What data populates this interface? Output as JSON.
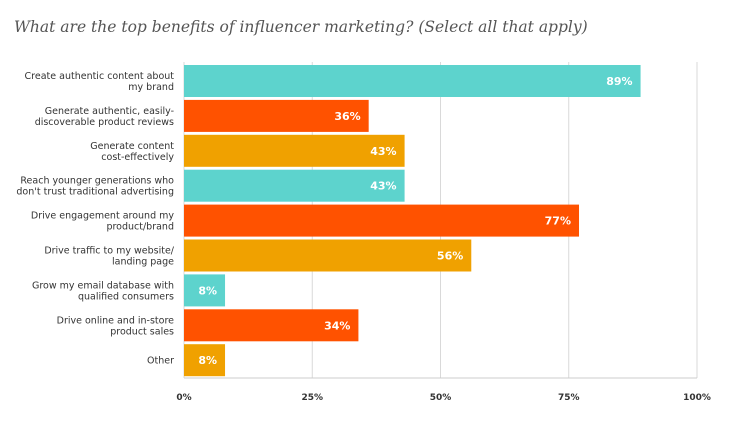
{
  "chart_data": {
    "type": "bar",
    "orientation": "horizontal",
    "title": "What are the top benefits of influencer marketing? (Select all that apply)",
    "categories": [
      [
        "Create authentic content about",
        "my brand"
      ],
      [
        "Generate authentic, easily-",
        "discoverable product reviews"
      ],
      [
        "Generate content",
        "cost-effectively"
      ],
      [
        "Reach younger generations who",
        "don't trust traditional advertising"
      ],
      [
        "Drive engagement around my",
        "product/brand"
      ],
      [
        "Drive traffic to my website/",
        "landing page"
      ],
      [
        "Grow my email database with",
        "qualified consumers"
      ],
      [
        "Drive online and in-store",
        "product sales"
      ],
      [
        "Other"
      ]
    ],
    "values": [
      89,
      36,
      43,
      43,
      77,
      56,
      8,
      34,
      8
    ],
    "value_labels": [
      "89%",
      "36%",
      "43%",
      "43%",
      "77%",
      "56%",
      "8%",
      "34%",
      "8%"
    ],
    "bar_colors": [
      "#5dd3cd",
      "#ff5200",
      "#f0a100",
      "#5dd3cd",
      "#ff5200",
      "#f0a100",
      "#5dd3cd",
      "#ff5200",
      "#f0a100"
    ],
    "xlim": [
      0,
      100
    ],
    "x_ticks": [
      0,
      25,
      50,
      75,
      100
    ],
    "x_tick_labels": [
      "0%",
      "25%",
      "50%",
      "75%",
      "100%"
    ],
    "grid": true
  }
}
